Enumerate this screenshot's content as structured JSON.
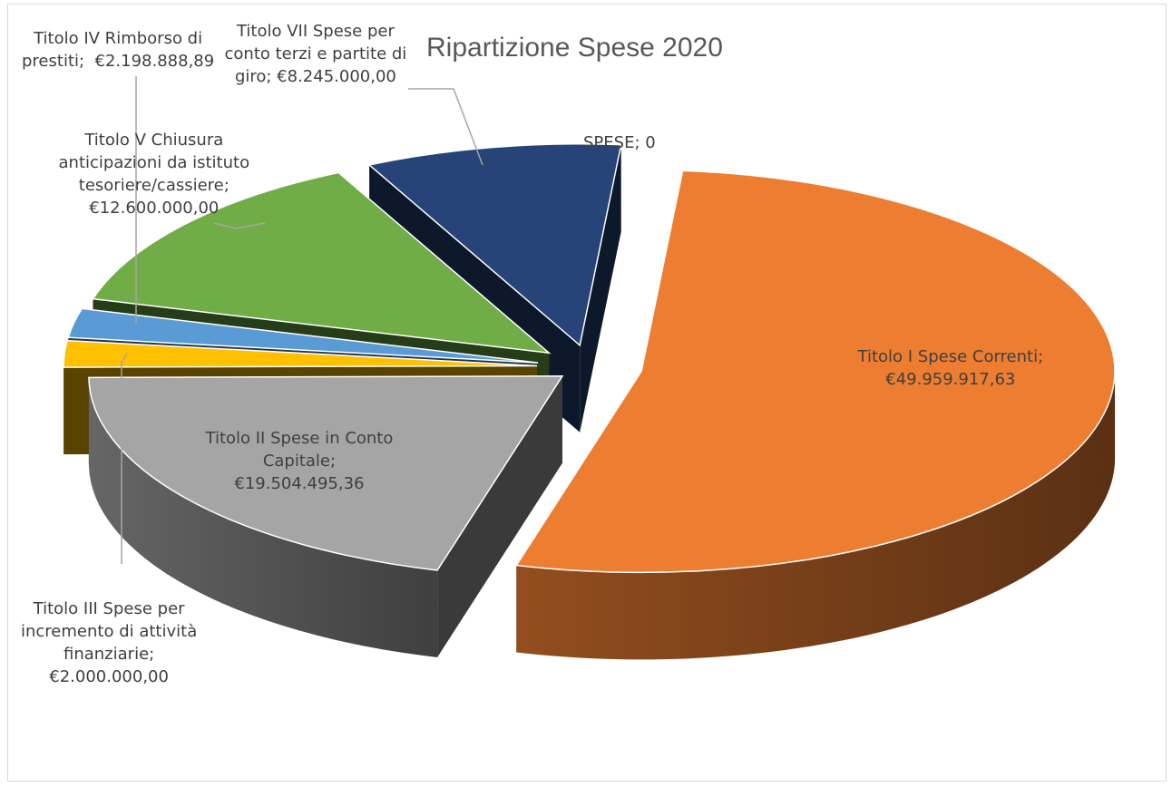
{
  "chart_data": {
    "type": "pie",
    "title": "Ripartizione Spese 2020",
    "slices": [
      {
        "category": "Titolo I Spese Correnti",
        "value": 49959917.63,
        "label": "€49.959.917,63",
        "color": "#ED7D31"
      },
      {
        "category": "Titolo II Spese in Conto Capitale",
        "value": 19504495.36,
        "label": "€19.504.495,36",
        "color": "#A5A5A5"
      },
      {
        "category": "Titolo III Spese per incremento di attività finanziarie",
        "value": 2000000.0,
        "label": "€2.000.000,00",
        "color": "#FFC000"
      },
      {
        "category": "Titolo IV Rimborso di prestiti",
        "value": 2198888.89,
        "label": "€2.198.888,89",
        "color": "#5B9BD5"
      },
      {
        "category": "Titolo V Chiusura anticipazioni da istituto tesoriere/cassiere",
        "value": 12600000.0,
        "label": "€12.600.000,00",
        "color": "#70AD47"
      },
      {
        "category": "Titolo VII Spese per conto terzi e partite di giro",
        "value": 8245000.0,
        "label": "€8.245.000,00",
        "color": "#264478"
      },
      {
        "category": "SPESE",
        "value": 0,
        "label": "0",
        "color": "#9E480E"
      }
    ],
    "data_labels": [
      "Titolo I Spese Correnti;\n€49.959.917,63",
      "Titolo II Spese in Conto\nCapitale;\n€19.504.495,36",
      "Titolo III Spese per\nincremento di attività\nfinanziarie;\n€2.000.000,00",
      "Titolo IV Rimborso di\nprestiti;  €2.198.888,89",
      "Titolo V Chiusura\nanticipazioni da istituto\ntesoriere/cassiere;\n€12.600.000,00",
      "Titolo VII Spese per\nconto terzi e partite di\ngiro; €8.245.000,00",
      "SPESE; 0"
    ],
    "legend": "none",
    "style": "3d-exploded"
  }
}
